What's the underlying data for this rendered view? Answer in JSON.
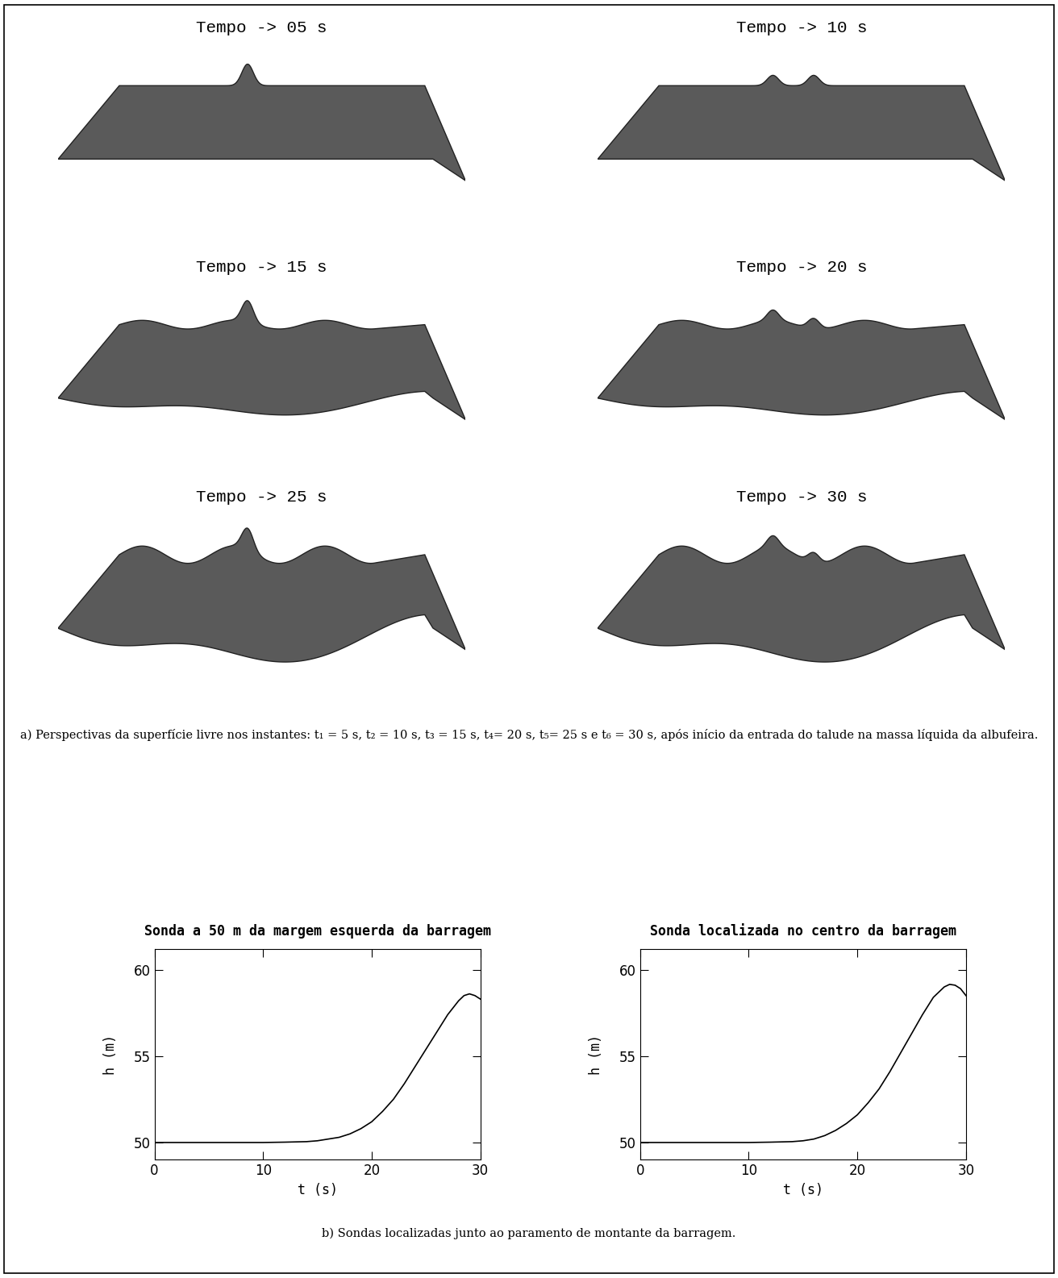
{
  "figure": {
    "panels": [
      {
        "title": "Tempo -> 05 s"
      },
      {
        "title": "Tempo -> 10 s"
      },
      {
        "title": "Tempo -> 15 s"
      },
      {
        "title": "Tempo -> 20 s"
      },
      {
        "title": "Tempo -> 25 s"
      },
      {
        "title": "Tempo -> 30 s"
      }
    ],
    "caption_a": "a) Perspectivas da superfície livre nos instantes: t₁ = 5 s, t₂ = 10 s, t₃ = 15 s, t₄= 20 s, t₅= 25 s e t₆ = 30 s, após início da entrada do talude na massa líquida da albufeira.",
    "caption_b": "b) Sondas localizadas junto ao paramento de montante da barragem."
  },
  "chart_data": [
    {
      "type": "line",
      "title": "Sonda a 50 m da margem esquerda da barragem",
      "x_label": "t (s)",
      "y_label": "h (m)",
      "x": [
        0,
        5,
        10,
        12,
        14,
        15,
        16,
        17,
        18,
        19,
        20,
        21,
        22,
        23,
        24,
        25,
        26,
        27,
        28,
        28.5,
        29,
        29.5,
        30
      ],
      "values": [
        50,
        50,
        50,
        50.02,
        50.05,
        50.1,
        50.2,
        50.3,
        50.5,
        50.8,
        51.2,
        51.8,
        52.5,
        53.4,
        54.4,
        55.4,
        56.4,
        57.4,
        58.2,
        58.5,
        58.6,
        58.5,
        58.3
      ],
      "color": "#000000",
      "xlim": [
        0,
        30
      ],
      "ylim": [
        49,
        61.2
      ],
      "xticks": [
        0,
        10,
        20,
        30
      ],
      "yticks": [
        50,
        55,
        60
      ],
      "grid": false
    },
    {
      "type": "line",
      "title": "Sonda localizada no centro da barragem",
      "x_label": "t (s)",
      "y_label": "h (m)",
      "x": [
        0,
        5,
        10,
        12,
        14,
        15,
        16,
        17,
        18,
        19,
        20,
        21,
        22,
        23,
        24,
        25,
        26,
        27,
        28,
        28.5,
        29,
        29.5,
        30
      ],
      "values": [
        50,
        50,
        50,
        50.02,
        50.05,
        50.1,
        50.2,
        50.4,
        50.7,
        51.1,
        51.6,
        52.3,
        53.1,
        54.1,
        55.2,
        56.3,
        57.4,
        58.4,
        59.0,
        59.15,
        59.1,
        58.9,
        58.5
      ],
      "color": "#000000",
      "xlim": [
        0,
        30
      ],
      "ylim": [
        49,
        61.2
      ],
      "xticks": [
        0,
        10,
        20,
        30
      ],
      "yticks": [
        50,
        55,
        60
      ],
      "grid": false
    }
  ]
}
